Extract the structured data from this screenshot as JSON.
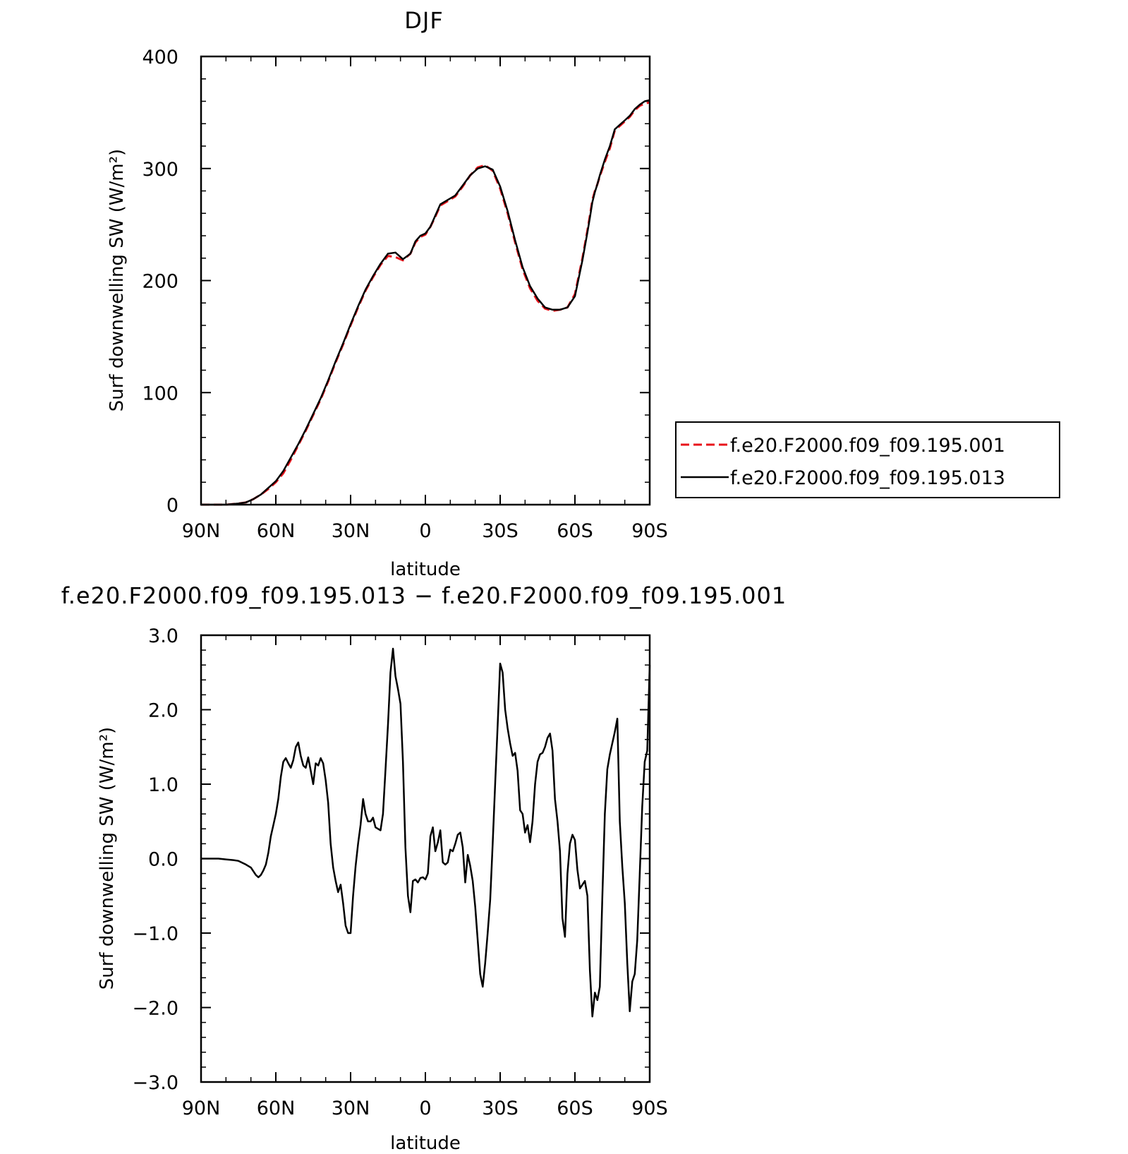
{
  "chart_data": [
    {
      "type": "line",
      "title": "DJF",
      "xlabel": "latitude",
      "ylabel": "Surf downwelling SW (W/m²)",
      "xlim": [
        90,
        -90
      ],
      "ylim": [
        0,
        400
      ],
      "xticks": [
        90,
        60,
        30,
        0,
        -30,
        -60,
        -90
      ],
      "xtick_labels": [
        "90N",
        "60N",
        "30N",
        "0",
        "30S",
        "60S",
        "90S"
      ],
      "yticks": [
        0,
        100,
        200,
        300,
        400
      ],
      "ytick_labels": [
        "0",
        "100",
        "200",
        "300",
        "400"
      ],
      "legend": {
        "position": "right",
        "entries": [
          "f.e20.F2000.f09_f09.195.001",
          "f.e20.F2000.f09_f09.195.013"
        ]
      },
      "series": [
        {
          "name": "f.e20.F2000.f09_f09.195.001",
          "color": "#e8141b",
          "dash": "dashed",
          "x": [
            90,
            80,
            75,
            72,
            69,
            66,
            63,
            60,
            57,
            54,
            51,
            48,
            45,
            42,
            39,
            36,
            33,
            30,
            27,
            24,
            21,
            18,
            15,
            12,
            9,
            6,
            4,
            2,
            0,
            -2,
            -4,
            -6,
            -9,
            -12,
            -15,
            -18,
            -21,
            -24,
            -27,
            -30,
            -33,
            -36,
            -39,
            -42,
            -45,
            -48,
            -51,
            -54,
            -57,
            -60,
            -63,
            -65,
            -66,
            -67,
            -68,
            -69,
            -70,
            -72,
            -74,
            -76,
            -78,
            -80,
            -82,
            -84,
            -86,
            -88,
            -90
          ],
          "y": [
            0,
            0,
            1,
            2,
            5,
            9,
            14,
            20,
            28,
            40,
            53,
            66,
            80,
            94,
            110,
            127,
            143,
            160,
            176,
            191,
            203,
            214,
            222,
            221,
            218,
            224,
            234,
            239,
            241,
            248,
            257,
            267,
            271,
            275,
            284,
            294,
            301,
            303,
            298,
            282,
            260,
            234,
            210,
            193,
            182,
            175,
            173,
            174,
            176,
            188,
            220,
            245,
            258,
            272,
            280,
            286,
            293,
            306,
            318,
            334,
            338,
            342,
            346,
            352,
            356,
            358,
            359
          ]
        },
        {
          "name": "f.e20.F2000.f09_f09.195.013",
          "color": "#000000",
          "dash": "solid",
          "x": [
            90,
            80,
            75,
            72,
            69,
            66,
            63,
            60,
            57,
            54,
            51,
            48,
            45,
            42,
            39,
            36,
            33,
            30,
            27,
            24,
            21,
            18,
            15,
            12,
            9,
            6,
            4,
            2,
            0,
            -2,
            -4,
            -6,
            -9,
            -12,
            -15,
            -18,
            -21,
            -24,
            -27,
            -30,
            -33,
            -36,
            -39,
            -42,
            -45,
            -48,
            -51,
            -54,
            -57,
            -60,
            -63,
            -65,
            -66,
            -67,
            -68,
            -69,
            -70,
            -72,
            -74,
            -76,
            -78,
            -80,
            -82,
            -84,
            -86,
            -88,
            -90
          ],
          "y": [
            0,
            0,
            1,
            2,
            5,
            9,
            15,
            21,
            30,
            42,
            54,
            67,
            81,
            95,
            111,
            128,
            144,
            161,
            177,
            192,
            204,
            215,
            224,
            225,
            219,
            224,
            235,
            240,
            242,
            248,
            258,
            268,
            272,
            276,
            285,
            294,
            300,
            302,
            299,
            284,
            262,
            236,
            212,
            195,
            184,
            176,
            174,
            174,
            176,
            186,
            218,
            243,
            256,
            270,
            279,
            286,
            294,
            308,
            320,
            335,
            339,
            343,
            347,
            353,
            357,
            360,
            361
          ]
        }
      ]
    },
    {
      "type": "line",
      "title": "f.e20.F2000.f09_f09.195.013 − f.e20.F2000.f09_f09.195.001",
      "xlabel": "latitude",
      "ylabel": "Surf downwelling SW (W/m²)",
      "xlim": [
        90,
        -90
      ],
      "ylim": [
        -3,
        3
      ],
      "xticks": [
        90,
        60,
        30,
        0,
        -30,
        -60,
        -90
      ],
      "xtick_labels": [
        "90N",
        "60N",
        "30N",
        "0",
        "30S",
        "60S",
        "90S"
      ],
      "yticks": [
        -3,
        -2,
        -1,
        0,
        1,
        2,
        3
      ],
      "ytick_labels": [
        "−3.0",
        "−2.0",
        "−1.0",
        "0.0",
        "1.0",
        "2.0",
        "3.0"
      ],
      "series": [
        {
          "color": "#000000",
          "dash": "solid",
          "x": [
            90,
            83,
            80,
            77,
            75,
            72,
            70,
            68,
            67,
            66,
            65,
            64,
            63,
            62,
            61,
            60,
            59,
            58,
            57,
            56,
            55,
            54,
            53,
            52,
            51,
            50,
            49,
            48,
            47,
            46,
            45,
            44,
            43,
            42,
            41,
            40,
            39,
            38,
            37,
            36,
            35,
            34,
            33,
            32,
            31,
            30,
            29,
            28,
            27,
            26,
            25,
            24,
            23,
            22,
            21,
            20,
            19,
            18,
            17,
            16,
            15,
            14,
            13,
            12,
            11,
            10,
            9,
            8,
            7,
            6,
            5,
            4,
            3,
            2,
            1,
            0,
            -1,
            -2,
            -3,
            -4,
            -5,
            -6,
            -7,
            -8,
            -9,
            -10,
            -11,
            -12,
            -13,
            -14,
            -15,
            -16,
            -17,
            -18,
            -19,
            -20,
            -21,
            -22,
            -23,
            -24,
            -25,
            -26,
            -27,
            -28,
            -29,
            -30,
            -31,
            -32,
            -33,
            -34,
            -35,
            -36,
            -37,
            -38,
            -39,
            -40,
            -41,
            -42,
            -43,
            -44,
            -45,
            -46,
            -47,
            -48,
            -49,
            -50,
            -51,
            -52,
            -53,
            -54,
            -55,
            -56,
            -57,
            -58,
            -59,
            -60,
            -61,
            -62,
            -63,
            -64,
            -65,
            -66,
            -67,
            -68,
            -69,
            -70,
            -71,
            -72,
            -73,
            -74,
            -75,
            -76,
            -77,
            -78,
            -79,
            -80,
            -81,
            -82,
            -83,
            -84,
            -85,
            -86,
            -87,
            -88,
            -89,
            -90
          ],
          "y": [
            0,
            0,
            -0.01,
            -0.02,
            -0.03,
            -0.08,
            -0.12,
            -0.22,
            -0.25,
            -0.22,
            -0.16,
            -0.08,
            0.08,
            0.3,
            0.45,
            0.6,
            0.8,
            1.1,
            1.3,
            1.35,
            1.28,
            1.22,
            1.32,
            1.5,
            1.56,
            1.38,
            1.25,
            1.22,
            1.36,
            1.18,
            1.0,
            1.28,
            1.25,
            1.35,
            1.28,
            1.05,
            0.75,
            0.2,
            -0.12,
            -0.3,
            -0.45,
            -0.35,
            -0.6,
            -0.9,
            -1.0,
            -1.0,
            -0.5,
            -0.1,
            0.2,
            0.45,
            0.8,
            0.6,
            0.5,
            0.5,
            0.55,
            0.42,
            0.4,
            0.38,
            0.6,
            1.2,
            1.8,
            2.5,
            2.82,
            2.45,
            2.28,
            2.08,
            1.3,
            0.15,
            -0.5,
            -0.72,
            -0.3,
            -0.28,
            -0.32,
            -0.26,
            -0.25,
            -0.28,
            -0.2,
            0.3,
            0.42,
            0.1,
            0.22,
            0.38,
            -0.05,
            -0.08,
            -0.05,
            0.12,
            0.1,
            0.2,
            0.32,
            0.35,
            0.15,
            -0.32,
            0.05,
            -0.1,
            -0.3,
            -0.65,
            -1.1,
            -1.55,
            -1.72,
            -1.4,
            -1.0,
            -0.55,
            0.2,
            1.0,
            1.8,
            2.62,
            2.5,
            2.0,
            1.75,
            1.55,
            1.38,
            1.42,
            1.18,
            0.65,
            0.6,
            0.35,
            0.45,
            0.22,
            0.5,
            1.0,
            1.3,
            1.4,
            1.42,
            1.5,
            1.62,
            1.68,
            1.45,
            0.8,
            0.5,
            0.1,
            -0.8,
            -1.05,
            -0.2,
            0.2,
            0.32,
            0.25,
            -0.15,
            -0.4,
            -0.35,
            -0.3,
            -0.5,
            -1.5,
            -2.12,
            -1.8,
            -1.9,
            -1.72,
            -0.5,
            0.6,
            1.2,
            1.4,
            1.55,
            1.7,
            1.88,
            0.5,
            -0.1,
            -0.6,
            -1.4,
            -2.05,
            -1.65,
            -1.55,
            -1.1,
            -0.2,
            0.7,
            1.3,
            1.45,
            2.6
          ]
        }
      ]
    }
  ]
}
